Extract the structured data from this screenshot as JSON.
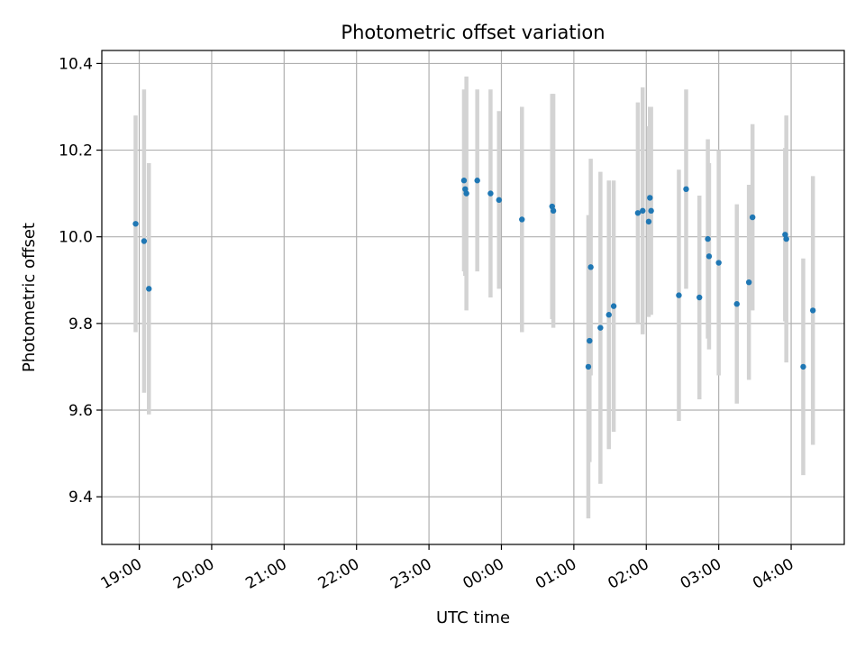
{
  "chart_data": {
    "type": "scatter",
    "title": "Photometric offset variation",
    "xlabel": "UTC time",
    "ylabel": "Photometric offset",
    "grid": true,
    "xlim": [
      "18:29",
      "04:44"
    ],
    "ylim": [
      9.29,
      10.43
    ],
    "x_ticks": [
      "19:00",
      "20:00",
      "21:00",
      "22:00",
      "23:00",
      "00:00",
      "01:00",
      "02:00",
      "03:00",
      "04:00"
    ],
    "y_ticks": [
      9.4,
      9.6,
      9.8,
      10.0,
      10.2,
      10.4
    ],
    "y_tick_labels": [
      "9.4",
      "9.6",
      "9.8",
      "10.0",
      "10.2",
      "10.4"
    ],
    "colors": {
      "points": "#1f77b4",
      "errorbars": "#d3d3d3",
      "grid": "#b0b0b0"
    },
    "points": [
      {
        "x": "18:57",
        "y": 10.03,
        "err": 0.25
      },
      {
        "x": "19:04",
        "y": 9.99,
        "err": 0.35
      },
      {
        "x": "19:08",
        "y": 9.88,
        "err": 0.29
      },
      {
        "x": "23:29",
        "y": 10.13,
        "err": 0.21
      },
      {
        "x": "23:30",
        "y": 10.11,
        "err": 0.2
      },
      {
        "x": "23:31",
        "y": 10.1,
        "err": 0.27
      },
      {
        "x": "23:40",
        "y": 10.13,
        "err": 0.21
      },
      {
        "x": "23:51",
        "y": 10.1,
        "err": 0.24
      },
      {
        "x": "23:58",
        "y": 10.085,
        "err": 0.205
      },
      {
        "x": "00:17",
        "y": 10.04,
        "err": 0.26
      },
      {
        "x": "00:42",
        "y": 10.07,
        "err": 0.26
      },
      {
        "x": "00:43",
        "y": 10.06,
        "err": 0.27
      },
      {
        "x": "01:12",
        "y": 9.7,
        "err": 0.35
      },
      {
        "x": "01:13",
        "y": 9.76,
        "err": 0.28
      },
      {
        "x": "01:14",
        "y": 9.93,
        "err": 0.25
      },
      {
        "x": "01:22",
        "y": 9.79,
        "err": 0.36
      },
      {
        "x": "01:29",
        "y": 9.82,
        "err": 0.31
      },
      {
        "x": "01:33",
        "y": 9.84,
        "err": 0.29
      },
      {
        "x": "01:53",
        "y": 10.055,
        "err": 0.255
      },
      {
        "x": "01:57",
        "y": 10.06,
        "err": 0.285
      },
      {
        "x": "02:02",
        "y": 10.035,
        "err": 0.22
      },
      {
        "x": "02:03",
        "y": 10.09,
        "err": 0.21
      },
      {
        "x": "02:04",
        "y": 10.06,
        "err": 0.24
      },
      {
        "x": "02:27",
        "y": 9.865,
        "err": 0.29
      },
      {
        "x": "02:33",
        "y": 10.11,
        "err": 0.23
      },
      {
        "x": "02:44",
        "y": 9.86,
        "err": 0.235
      },
      {
        "x": "02:51",
        "y": 9.995,
        "err": 0.23
      },
      {
        "x": "02:52",
        "y": 9.955,
        "err": 0.215
      },
      {
        "x": "03:00",
        "y": 9.94,
        "err": 0.26
      },
      {
        "x": "03:15",
        "y": 9.845,
        "err": 0.23
      },
      {
        "x": "03:25",
        "y": 9.895,
        "err": 0.225
      },
      {
        "x": "03:28",
        "y": 10.045,
        "err": 0.215
      },
      {
        "x": "03:55",
        "y": 10.005,
        "err": 0.2
      },
      {
        "x": "03:56",
        "y": 9.995,
        "err": 0.285
      },
      {
        "x": "04:10",
        "y": 9.7,
        "err": 0.25
      },
      {
        "x": "04:18",
        "y": 9.83,
        "err": 0.31
      }
    ]
  }
}
